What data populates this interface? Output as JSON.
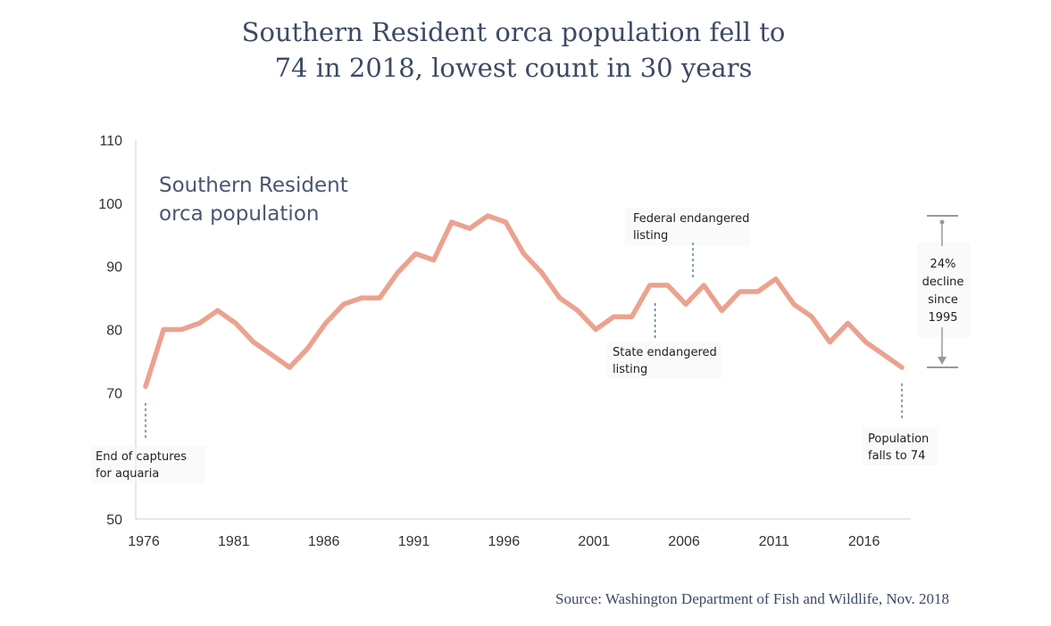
{
  "title_lines": [
    "Southern Resident orca population fell to",
    "74 in 2018, lowest count in 30 years"
  ],
  "source": "Source: Washington Department of Fish and Wildlife, Nov. 2018",
  "chart_data": {
    "type": "line",
    "title": "Southern Resident orca population fell to 74 in 2018, lowest count in 30 years",
    "series_label": [
      "Southern Resident",
      "orca population"
    ],
    "x": [
      1976,
      1977,
      1978,
      1979,
      1980,
      1981,
      1982,
      1983,
      1984,
      1985,
      1986,
      1987,
      1988,
      1989,
      1990,
      1991,
      1992,
      1993,
      1994,
      1995,
      1996,
      1997,
      1998,
      1999,
      2000,
      2001,
      2002,
      2003,
      2004,
      2005,
      2006,
      2007,
      2008,
      2009,
      2010,
      2011,
      2012,
      2013,
      2014,
      2015,
      2016,
      2017,
      2018
    ],
    "values": [
      71,
      80,
      80,
      81,
      83,
      81,
      78,
      76,
      74,
      77,
      81,
      84,
      85,
      85,
      89,
      92,
      91,
      97,
      96,
      98,
      97,
      92,
      89,
      85,
      83,
      80,
      82,
      82,
      87,
      87,
      84,
      87,
      83,
      86,
      86,
      88,
      84,
      82,
      78,
      81,
      78,
      76,
      74
    ],
    "xlim": [
      1976,
      2018
    ],
    "ylim": [
      50,
      110
    ],
    "x_ticks": [
      1976,
      1981,
      1986,
      1991,
      1996,
      2001,
      2006,
      2011,
      2016
    ],
    "y_ticks": [
      50,
      70,
      80,
      90,
      100,
      110
    ],
    "line_color": "#eba28f",
    "annotations": [
      {
        "lines": [
          "End of captures",
          "for aquaria"
        ],
        "year": 1976
      },
      {
        "lines": [
          "State endangered",
          "listing"
        ],
        "year": 2004
      },
      {
        "lines": [
          "Federal endangered",
          "listing"
        ],
        "year": 2006
      },
      {
        "lines": [
          "Population",
          "falls to 74"
        ],
        "year": 2018
      }
    ],
    "decline_note": {
      "lines": [
        "24%",
        "decline",
        "since",
        "1995"
      ],
      "from": 98,
      "to": 74
    }
  }
}
